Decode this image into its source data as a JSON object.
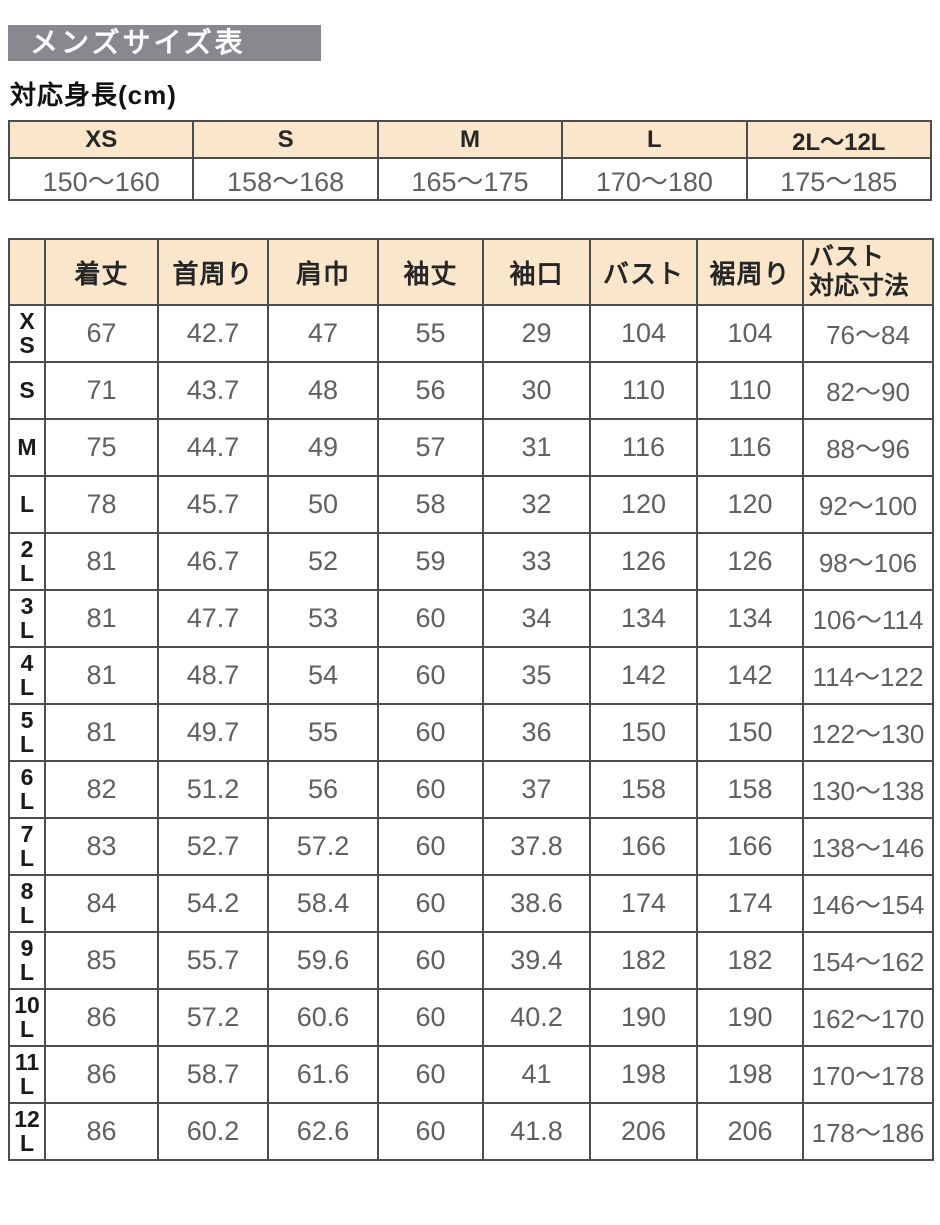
{
  "page": {
    "title": "メンズサイズ表",
    "height_label": "対応身長(cm)"
  },
  "colors": {
    "title_bar_bg": "#8A878E",
    "header_bg": "#FAE7CB",
    "border": "#4D4D4D",
    "value_text": "#606060",
    "header_text": "#262626"
  },
  "height_table": {
    "columns": [
      "XS",
      "S",
      "M",
      "L",
      "2L〜12L"
    ],
    "values": [
      "150〜160",
      "158〜168",
      "165〜175",
      "170〜180",
      "175〜185"
    ]
  },
  "size_table": {
    "columns": [
      "着丈",
      "首周り",
      "肩巾",
      "袖丈",
      "袖口",
      "バスト",
      "裾周り",
      "バスト\n対応寸法"
    ],
    "rows": [
      {
        "label": "X\nS",
        "values": [
          "67",
          "42.7",
          "47",
          "55",
          "29",
          "104",
          "104",
          "76〜84"
        ]
      },
      {
        "label": "S",
        "values": [
          "71",
          "43.7",
          "48",
          "56",
          "30",
          "110",
          "110",
          "82〜90"
        ]
      },
      {
        "label": "M",
        "values": [
          "75",
          "44.7",
          "49",
          "57",
          "31",
          "116",
          "116",
          "88〜96"
        ]
      },
      {
        "label": "L",
        "values": [
          "78",
          "45.7",
          "50",
          "58",
          "32",
          "120",
          "120",
          "92〜100"
        ]
      },
      {
        "label": "2\nL",
        "values": [
          "81",
          "46.7",
          "52",
          "59",
          "33",
          "126",
          "126",
          "98〜106"
        ]
      },
      {
        "label": "3\nL",
        "values": [
          "81",
          "47.7",
          "53",
          "60",
          "34",
          "134",
          "134",
          "106〜114"
        ]
      },
      {
        "label": "4\nL",
        "values": [
          "81",
          "48.7",
          "54",
          "60",
          "35",
          "142",
          "142",
          "114〜122"
        ]
      },
      {
        "label": "5\nL",
        "values": [
          "81",
          "49.7",
          "55",
          "60",
          "36",
          "150",
          "150",
          "122〜130"
        ]
      },
      {
        "label": "6\nL",
        "values": [
          "82",
          "51.2",
          "56",
          "60",
          "37",
          "158",
          "158",
          "130〜138"
        ]
      },
      {
        "label": "7\nL",
        "values": [
          "83",
          "52.7",
          "57.2",
          "60",
          "37.8",
          "166",
          "166",
          "138〜146"
        ]
      },
      {
        "label": "8\nL",
        "values": [
          "84",
          "54.2",
          "58.4",
          "60",
          "38.6",
          "174",
          "174",
          "146〜154"
        ]
      },
      {
        "label": "9\nL",
        "values": [
          "85",
          "55.7",
          "59.6",
          "60",
          "39.4",
          "182",
          "182",
          "154〜162"
        ]
      },
      {
        "label": "10\nL",
        "values": [
          "86",
          "57.2",
          "60.6",
          "60",
          "40.2",
          "190",
          "190",
          "162〜170"
        ]
      },
      {
        "label": "11\nL",
        "values": [
          "86",
          "58.7",
          "61.6",
          "60",
          "41",
          "198",
          "198",
          "170〜178"
        ]
      },
      {
        "label": "12\nL",
        "values": [
          "86",
          "60.2",
          "62.6",
          "60",
          "41.8",
          "206",
          "206",
          "178〜186"
        ]
      }
    ]
  }
}
